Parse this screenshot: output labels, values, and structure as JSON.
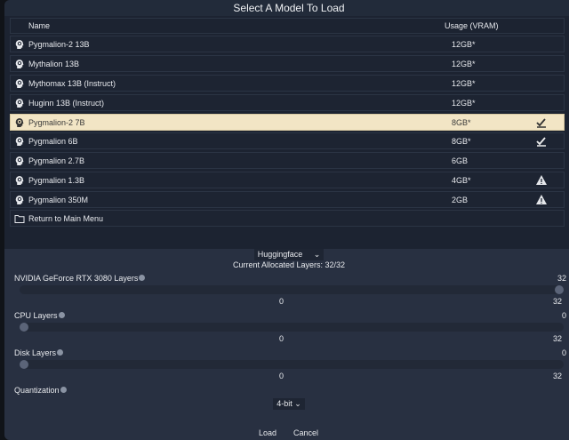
{
  "title": "Select A Model To Load",
  "columns": {
    "name": "Name",
    "usage": "Usage (VRAM)"
  },
  "models": [
    {
      "name": "Pygmalion-2 13B",
      "usage": "12GB*",
      "flag": ""
    },
    {
      "name": "Mythalion 13B",
      "usage": "12GB*",
      "flag": ""
    },
    {
      "name": "Mythomax 13B (Instruct)",
      "usage": "12GB*",
      "flag": ""
    },
    {
      "name": "Huginn 13B (Instruct)",
      "usage": "12GB*",
      "flag": ""
    },
    {
      "name": "Pygmalion-2 7B",
      "usage": "8GB*",
      "flag": "check",
      "selected": true
    },
    {
      "name": "Pygmalion 6B",
      "usage": "8GB*",
      "flag": "check"
    },
    {
      "name": "Pygmalion 2.7B",
      "usage": "6GB",
      "flag": ""
    },
    {
      "name": "Pygmalion 1.3B",
      "usage": "4GB*",
      "flag": "warning"
    },
    {
      "name": "Pygmalion 350M",
      "usage": "2GB",
      "flag": "warning"
    }
  ],
  "return_label": "Return to Main Menu",
  "backend": "Huggingface",
  "allocated": "Current Allocated Layers: 32/32",
  "sliders": [
    {
      "label": "NVIDIA GeForce RTX 3080 Layers",
      "value": "32",
      "min": "0",
      "max": "32",
      "fraction": 1
    },
    {
      "label": "CPU Layers",
      "value": "0",
      "min": "0",
      "max": "32",
      "fraction": 0
    },
    {
      "label": "Disk Layers",
      "value": "0",
      "min": "0",
      "max": "32",
      "fraction": 0
    }
  ],
  "quantization": {
    "label": "Quantization",
    "value": "4-bit"
  },
  "buttons": {
    "load": "Load",
    "cancel": "Cancel"
  },
  "colors": {
    "selected_row": "#f2e5c5",
    "panel": "#283041"
  }
}
